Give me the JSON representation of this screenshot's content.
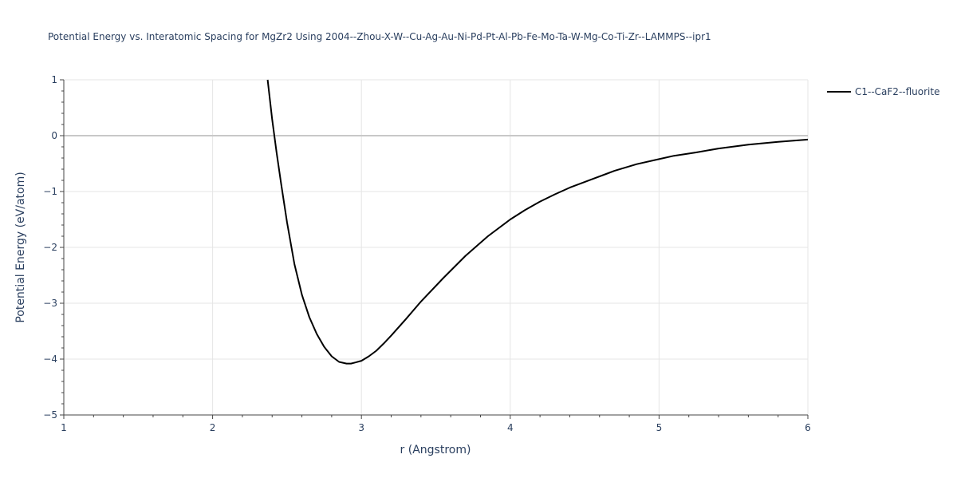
{
  "chart_data": {
    "type": "line",
    "title": "Potential Energy vs. Interatomic Spacing for MgZr2 Using 2004--Zhou-X-W--Cu-Ag-Au-Ni-Pd-Pt-Al-Pb-Fe-Mo-Ta-W-Mg-Co-Ti-Zr--LAMMPS--ipr1",
    "xlabel": "r (Angstrom)",
    "ylabel": "Potential Energy (eV/atom)",
    "xlim": [
      1,
      6
    ],
    "ylim": [
      -5,
      1
    ],
    "x_ticks": [
      1,
      2,
      3,
      4,
      5,
      6
    ],
    "x_tick_labels": [
      "1",
      "2",
      "3",
      "4",
      "5",
      "6"
    ],
    "y_ticks": [
      1,
      0,
      -1,
      -2,
      -3,
      -4,
      -5
    ],
    "y_tick_labels": [
      "1",
      "0",
      "−1",
      "−2",
      "−3",
      "−4",
      "−5"
    ],
    "grid": true,
    "legend_position": "top-right",
    "colors": {
      "series": "#000000",
      "text": "#2a3f5f",
      "grid": "#e5e5e5",
      "zeroline": "#c8c8c8"
    },
    "series": [
      {
        "name": "C1--CaF2--fluorite",
        "x": [
          2.37,
          2.4,
          2.43,
          2.46,
          2.5,
          2.55,
          2.6,
          2.65,
          2.7,
          2.75,
          2.8,
          2.85,
          2.9,
          2.93,
          2.96,
          3.0,
          3.05,
          3.1,
          3.15,
          3.2,
          3.3,
          3.4,
          3.55,
          3.7,
          3.85,
          4.0,
          4.1,
          4.2,
          4.3,
          4.4,
          4.55,
          4.7,
          4.85,
          5.0,
          5.1,
          5.25,
          5.4,
          5.6,
          5.8,
          6.0
        ],
        "y": [
          1.0,
          0.3,
          -0.3,
          -0.85,
          -1.55,
          -2.3,
          -2.85,
          -3.25,
          -3.55,
          -3.78,
          -3.95,
          -4.05,
          -4.08,
          -4.08,
          -4.06,
          -4.03,
          -3.95,
          -3.85,
          -3.72,
          -3.58,
          -3.28,
          -2.97,
          -2.55,
          -2.15,
          -1.8,
          -1.5,
          -1.33,
          -1.18,
          -1.05,
          -0.93,
          -0.78,
          -0.63,
          -0.51,
          -0.42,
          -0.36,
          -0.3,
          -0.23,
          -0.16,
          -0.11,
          -0.07
        ]
      }
    ]
  }
}
